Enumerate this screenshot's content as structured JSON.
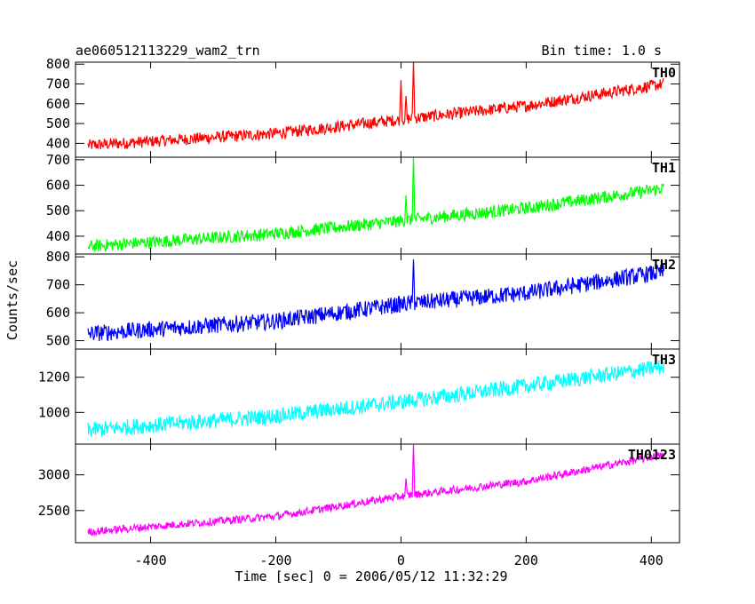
{
  "header": {
    "title": "ae060512113229_wam2_trn",
    "bin_time": "Bin time: 1.0 s"
  },
  "axes": {
    "ylabel": "Counts/sec",
    "xlabel": "Time [sec] 0 = 2006/05/12 11:32:29"
  },
  "chart_data": [
    {
      "type": "line",
      "label": "TH0",
      "color": "#ff0000",
      "xlim": [
        -520,
        445
      ],
      "ylim": [
        330,
        810
      ],
      "yticks": [
        400,
        500,
        600,
        700,
        800
      ],
      "trend": {
        "x": [
          -500,
          -200,
          0,
          200,
          400,
          420
        ],
        "y": [
          390,
          450,
          520,
          590,
          690,
          700
        ]
      },
      "noise": 30,
      "spikes": [
        {
          "x": 0,
          "y": 720
        },
        {
          "x": 8,
          "y": 640
        },
        {
          "x": 20,
          "y": 810
        }
      ]
    },
    {
      "type": "line",
      "label": "TH1",
      "color": "#00ff00",
      "xlim": [
        -520,
        445
      ],
      "ylim": [
        330,
        710
      ],
      "yticks": [
        400,
        500,
        600,
        700
      ],
      "trend": {
        "x": [
          -500,
          -200,
          0,
          200,
          400,
          420
        ],
        "y": [
          360,
          410,
          460,
          510,
          580,
          590
        ]
      },
      "noise": 25,
      "spikes": [
        {
          "x": 8,
          "y": 560
        },
        {
          "x": 20,
          "y": 710
        }
      ]
    },
    {
      "type": "line",
      "label": "TH2",
      "color": "#0000ff",
      "xlim": [
        -520,
        445
      ],
      "ylim": [
        470,
        810
      ],
      "yticks": [
        500,
        600,
        700,
        800
      ],
      "trend": {
        "x": [
          -500,
          -200,
          0,
          200,
          400,
          420
        ],
        "y": [
          525,
          570,
          630,
          670,
          740,
          745
        ]
      },
      "noise": 30,
      "spikes": [
        {
          "x": 20,
          "y": 790
        }
      ]
    },
    {
      "type": "line",
      "label": "TH3",
      "color": "#00ffff",
      "xlim": [
        -520,
        445
      ],
      "ylim": [
        820,
        1360
      ],
      "yticks": [
        1000,
        1200
      ],
      "trend": {
        "x": [
          -500,
          -200,
          0,
          200,
          400,
          420
        ],
        "y": [
          900,
          980,
          1060,
          1150,
          1250,
          1260
        ]
      },
      "noise": 45,
      "spikes": []
    },
    {
      "type": "line",
      "label": "TH0123",
      "color": "#ff00ff",
      "xlim": [
        -520,
        445
      ],
      "ylim": [
        2050,
        3430
      ],
      "yticks": [
        2500,
        3000
      ],
      "trend": {
        "x": [
          -500,
          -200,
          0,
          200,
          400,
          420
        ],
        "y": [
          2200,
          2420,
          2700,
          2910,
          3250,
          3270
        ]
      },
      "noise": 55,
      "spikes": [
        {
          "x": 8,
          "y": 2950
        },
        {
          "x": 20,
          "y": 3420
        }
      ]
    }
  ],
  "xticks": [
    -400,
    -200,
    0,
    200,
    400
  ]
}
